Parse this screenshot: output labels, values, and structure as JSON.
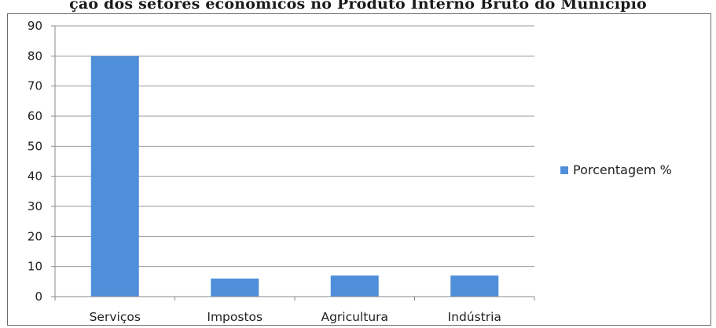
{
  "chart_data": {
    "type": "bar",
    "title": "ção dos setores econômicos no Produto Interno Bruto do Município",
    "categories": [
      "Serviços",
      "Impostos",
      "Agricultura",
      "Indústria"
    ],
    "series": [
      {
        "name": "Porcentagem %",
        "values": [
          80,
          6,
          7,
          7
        ],
        "color": "#4f8fd9"
      }
    ],
    "ylim": [
      0,
      90
    ],
    "yticks": [
      0,
      10,
      20,
      30,
      40,
      50,
      60,
      70,
      80,
      90
    ],
    "grid": true,
    "legend": "right"
  }
}
